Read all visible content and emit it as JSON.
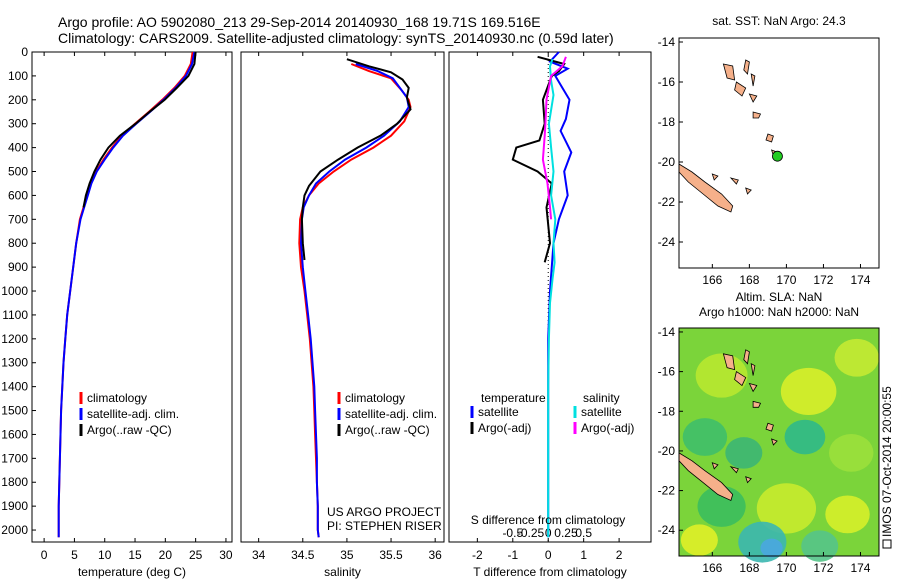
{
  "header": {
    "line1": "Argo profile: AO 5902080_213 29-Sep-2014 20140930_168 19.71S 169.516E",
    "line2": "Climatology: CARS2009. Satellite-adjusted climatology: synTS_20140930.nc (0.59d later)"
  },
  "colors": {
    "climatology": "#ff0000",
    "satellite": "#0000ff",
    "argo": "#000000",
    "s_satellite": "#00e0e0",
    "s_argo": "#ff00ff"
  },
  "chart_data": [
    {
      "type": "line",
      "xlabel": "temperature (deg C)",
      "xlim": [
        -2,
        31
      ],
      "ylim": [
        2050,
        0
      ],
      "xticks": [
        0,
        5,
        10,
        15,
        20,
        25,
        30
      ],
      "yticks": [
        0,
        100,
        200,
        300,
        400,
        500,
        600,
        700,
        800,
        900,
        1000,
        1100,
        1200,
        1300,
        1400,
        1500,
        1600,
        1700,
        1800,
        1900,
        2000
      ],
      "legend": [
        "climatology",
        "satellite-adj. clim.",
        "Argo(..raw -QC)"
      ],
      "legend_position": "lower-center",
      "series": [
        {
          "name": "climatology",
          "color": "#ff0000",
          "points": [
            [
              24.5,
              0
            ],
            [
              24.2,
              50
            ],
            [
              23.2,
              100
            ],
            [
              21.5,
              150
            ],
            [
              19.5,
              200
            ],
            [
              17.3,
              250
            ],
            [
              15.0,
              300
            ],
            [
              12.8,
              350
            ],
            [
              11.2,
              400
            ],
            [
              9.8,
              450
            ],
            [
              8.6,
              500
            ],
            [
              7.7,
              550
            ],
            [
              7.1,
              600
            ],
            [
              6.5,
              650
            ],
            [
              5.9,
              700
            ],
            [
              5.3,
              800
            ],
            [
              4.8,
              900
            ],
            [
              4.3,
              1000
            ],
            [
              3.8,
              1100
            ],
            [
              3.5,
              1200
            ],
            [
              3.2,
              1300
            ],
            [
              3.0,
              1400
            ],
            [
              2.8,
              1500
            ],
            [
              2.7,
              1600
            ],
            [
              2.6,
              1700
            ],
            [
              2.5,
              1800
            ],
            [
              2.4,
              1900
            ],
            [
              2.4,
              2000
            ],
            [
              2.4,
              2030
            ]
          ]
        },
        {
          "name": "satellite-adj. clim.",
          "color": "#0000ff",
          "points": [
            [
              24.8,
              0
            ],
            [
              24.4,
              50
            ],
            [
              23.4,
              100
            ],
            [
              21.7,
              150
            ],
            [
              19.7,
              200
            ],
            [
              17.5,
              250
            ],
            [
              15.2,
              300
            ],
            [
              13.0,
              350
            ],
            [
              11.4,
              400
            ],
            [
              10.0,
              450
            ],
            [
              8.7,
              500
            ],
            [
              7.8,
              550
            ],
            [
              7.2,
              600
            ],
            [
              6.6,
              650
            ],
            [
              6.0,
              700
            ],
            [
              5.3,
              800
            ],
            [
              4.8,
              900
            ],
            [
              4.3,
              1000
            ],
            [
              3.8,
              1100
            ],
            [
              3.5,
              1200
            ],
            [
              3.2,
              1300
            ],
            [
              3.0,
              1400
            ],
            [
              2.8,
              1500
            ],
            [
              2.7,
              1600
            ],
            [
              2.6,
              1700
            ],
            [
              2.5,
              1800
            ],
            [
              2.4,
              1900
            ],
            [
              2.4,
              2000
            ],
            [
              2.4,
              2030
            ]
          ]
        },
        {
          "name": "Argo(..raw -QC)",
          "color": "#000000",
          "points": [
            [
              25.0,
              0
            ],
            [
              24.8,
              50
            ],
            [
              23.8,
              100
            ],
            [
              21.9,
              150
            ],
            [
              19.9,
              200
            ],
            [
              17.4,
              250
            ],
            [
              15.1,
              300
            ],
            [
              12.5,
              350
            ],
            [
              10.6,
              400
            ],
            [
              9.3,
              450
            ],
            [
              8.3,
              500
            ],
            [
              7.5,
              550
            ],
            [
              6.9,
              600
            ],
            [
              6.5,
              650
            ]
          ]
        }
      ]
    },
    {
      "type": "line",
      "xlabel": "salinity",
      "xlim": [
        33.8,
        36.1
      ],
      "ylim": [
        2050,
        0
      ],
      "xticks": [
        34,
        34.5,
        35,
        35.5,
        36
      ],
      "legend": [
        "climatology",
        "satellite-adj. clim.",
        "Argo(..raw -QC)"
      ],
      "legend_position": "lower-right",
      "annotations": [
        "US ARGO PROJECT",
        "PI: STEPHEN RISER"
      ],
      "series": [
        {
          "name": "climatology",
          "color": "#ff0000",
          "points": [
            [
              35.05,
              50
            ],
            [
              35.25,
              80
            ],
            [
              35.5,
              110
            ],
            [
              35.62,
              160
            ],
            [
              35.7,
              200
            ],
            [
              35.72,
              230
            ],
            [
              35.65,
              290
            ],
            [
              35.5,
              350
            ],
            [
              35.3,
              400
            ],
            [
              35.05,
              450
            ],
            [
              34.85,
              500
            ],
            [
              34.68,
              550
            ],
            [
              34.57,
              600
            ],
            [
              34.5,
              650
            ],
            [
              34.47,
              700
            ],
            [
              34.46,
              800
            ],
            [
              34.48,
              900
            ],
            [
              34.52,
              1000
            ],
            [
              34.55,
              1100
            ],
            [
              34.58,
              1200
            ],
            [
              34.6,
              1300
            ],
            [
              34.62,
              1400
            ],
            [
              34.63,
              1500
            ],
            [
              34.64,
              1600
            ],
            [
              34.65,
              1700
            ],
            [
              34.66,
              1800
            ],
            [
              34.67,
              1900
            ],
            [
              34.67,
              2000
            ],
            [
              34.68,
              2030
            ]
          ]
        },
        {
          "name": "satellite-adj. clim.",
          "color": "#0000ff",
          "points": [
            [
              35.1,
              50
            ],
            [
              35.35,
              80
            ],
            [
              35.52,
              110
            ],
            [
              35.6,
              150
            ],
            [
              35.68,
              190
            ],
            [
              35.7,
              230
            ],
            [
              35.6,
              290
            ],
            [
              35.42,
              350
            ],
            [
              35.22,
              400
            ],
            [
              34.98,
              450
            ],
            [
              34.8,
              500
            ],
            [
              34.65,
              550
            ],
            [
              34.57,
              600
            ],
            [
              34.51,
              650
            ],
            [
              34.49,
              700
            ],
            [
              34.48,
              800
            ],
            [
              34.5,
              900
            ],
            [
              34.53,
              1000
            ],
            [
              34.56,
              1100
            ],
            [
              34.59,
              1200
            ],
            [
              34.61,
              1300
            ],
            [
              34.63,
              1400
            ],
            [
              34.64,
              1500
            ],
            [
              34.65,
              1600
            ],
            [
              34.66,
              1700
            ],
            [
              34.66,
              1800
            ],
            [
              34.67,
              1900
            ],
            [
              34.67,
              2000
            ],
            [
              34.68,
              2030
            ]
          ]
        },
        {
          "name": "Argo(..raw -QC)",
          "color": "#000000",
          "points": [
            [
              35.0,
              30
            ],
            [
              35.25,
              60
            ],
            [
              35.5,
              85
            ],
            [
              35.63,
              115
            ],
            [
              35.7,
              150
            ],
            [
              35.68,
              190
            ],
            [
              35.72,
              240
            ],
            [
              35.57,
              300
            ],
            [
              35.38,
              350
            ],
            [
              35.12,
              400
            ],
            [
              34.9,
              450
            ],
            [
              34.7,
              500
            ],
            [
              34.57,
              560
            ],
            [
              34.52,
              600
            ],
            [
              34.5,
              650
            ],
            [
              34.49,
              700
            ],
            [
              34.5,
              800
            ],
            [
              34.52,
              870
            ]
          ]
        }
      ]
    },
    {
      "type": "line",
      "xlabel": "T difference from climatology",
      "xlabel2": "S difference from climatology",
      "xlim": [
        -2.8,
        2.9
      ],
      "ylim": [
        2050,
        0
      ],
      "xticks": [
        -2,
        -1,
        0,
        1,
        2
      ],
      "sticks": [
        "-0.5",
        "-0.25",
        "0",
        "0.25",
        "0.5"
      ],
      "legend_headers": [
        "temperature",
        "salinity"
      ],
      "legend": [
        "satellite",
        "Argo(-adj)",
        "satellite",
        "Argo(-adj)"
      ],
      "series": [
        {
          "name": "satellite",
          "variable": "temperature",
          "color": "#0000ff",
          "points": [
            [
              0.3,
              0
            ],
            [
              0.05,
              40
            ],
            [
              0.55,
              70
            ],
            [
              0.2,
              100
            ],
            [
              0.4,
              150
            ],
            [
              0.6,
              200
            ],
            [
              0.5,
              280
            ],
            [
              0.35,
              330
            ],
            [
              0.65,
              420
            ],
            [
              0.45,
              500
            ],
            [
              0.55,
              600
            ],
            [
              0.3,
              700
            ],
            [
              0.15,
              800
            ],
            [
              0.05,
              1000
            ],
            [
              0,
              1200
            ],
            [
              0,
              2030
            ]
          ]
        },
        {
          "name": "Argo(-adj)",
          "variable": "temperature",
          "color": "#000000",
          "points": [
            [
              -0.3,
              20
            ],
            [
              0.45,
              50
            ],
            [
              0.3,
              80
            ],
            [
              0.1,
              100
            ],
            [
              -0.15,
              200
            ],
            [
              -0.1,
              300
            ],
            [
              -0.25,
              370
            ],
            [
              -0.9,
              400
            ],
            [
              -1.0,
              450
            ],
            [
              -0.3,
              500
            ],
            [
              0.1,
              550
            ],
            [
              -0.05,
              650
            ],
            [
              0.05,
              800
            ],
            [
              -0.1,
              880
            ]
          ]
        },
        {
          "name": "satellite",
          "variable": "salinity",
          "color": "#00e0e0",
          "points": [
            [
              0.12,
              30
            ],
            [
              0.05,
              60
            ],
            [
              0.08,
              120
            ],
            [
              0.15,
              180
            ],
            [
              0.02,
              300
            ],
            [
              0.08,
              400
            ],
            [
              0.15,
              500
            ],
            [
              0.08,
              600
            ],
            [
              0.2,
              700
            ],
            [
              0.15,
              800
            ],
            [
              0.18,
              880
            ],
            [
              0.12,
              950
            ],
            [
              0.05,
              1050
            ],
            [
              0.02,
              1200
            ],
            [
              0,
              1400
            ],
            [
              0,
              2030
            ]
          ]
        },
        {
          "name": "Argo(-adj)",
          "variable": "salinity",
          "color": "#ff00ff",
          "points": [
            [
              0.5,
              20
            ],
            [
              0.4,
              60
            ],
            [
              0.08,
              100
            ],
            [
              -0.05,
              200
            ],
            [
              -0.08,
              300
            ],
            [
              -0.1,
              350
            ],
            [
              -0.15,
              450
            ],
            [
              -0.02,
              550
            ],
            [
              0.05,
              650
            ],
            [
              0.08,
              700
            ]
          ]
        }
      ]
    },
    {
      "type": "map",
      "title": "sat. SST: NaN Argo: 24.3",
      "xlim": [
        164.2,
        175
      ],
      "ylim": [
        -25.3,
        -13.8
      ],
      "xticks": [
        166,
        168,
        170,
        172,
        174
      ],
      "yticks": [
        -14,
        -16,
        -18,
        -20,
        -22,
        -24
      ],
      "argo_position": [
        169.516,
        -19.71
      ]
    },
    {
      "type": "heatmap",
      "title": "Altim. SLA: NaN",
      "subtitle": "Argo h1000: NaN h2000: NaN",
      "xlim": [
        164.2,
        175
      ],
      "ylim": [
        -25.3,
        -13.8
      ],
      "xticks": [
        166,
        168,
        170,
        172,
        174
      ],
      "yticks": [
        -14,
        -16,
        -18,
        -20,
        -22,
        -24
      ]
    }
  ],
  "side_label": "IMOS 07-Oct-2014 20:00:55"
}
